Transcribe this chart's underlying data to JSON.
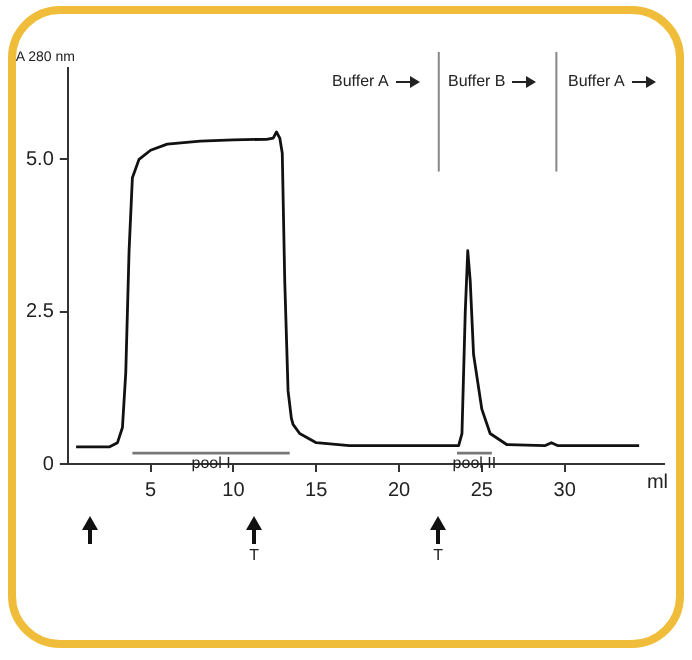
{
  "chart_data": {
    "type": "line",
    "ylabel": "A 280 nm",
    "xlabel": "ml",
    "xlim": [
      0,
      36
    ],
    "xticks": [
      5,
      10,
      15,
      20,
      25,
      30
    ],
    "ylim": [
      0,
      6.5
    ],
    "yticks": [
      0,
      2.5,
      {
        "value": 5,
        "label": "5.0"
      }
    ],
    "grid": false,
    "legend": false,
    "marker": "none",
    "line_style": "solid",
    "series": [
      {
        "color": "#111111",
        "x": [
          0.5,
          2.5,
          3.0,
          3.3,
          3.5,
          3.7,
          3.9,
          4.3,
          5,
          6,
          8,
          10,
          12,
          12.4,
          12.6,
          12.8,
          12.95,
          13.1,
          13.3,
          13.5,
          13.6,
          14,
          15,
          17,
          23.6,
          23.8,
          24.0,
          24.15,
          24.3,
          24.5,
          25,
          25.5,
          26.5,
          28.8,
          29.2,
          29.6,
          34.5
        ],
        "values": [
          0.28,
          0.28,
          0.35,
          0.6,
          1.5,
          3.5,
          4.7,
          5.0,
          5.15,
          5.25,
          5.3,
          5.32,
          5.33,
          5.35,
          5.45,
          5.35,
          5.1,
          3,
          1.2,
          0.75,
          0.65,
          0.5,
          0.35,
          0.3,
          0.3,
          0.5,
          2.5,
          3.5,
          3.0,
          1.8,
          0.9,
          0.5,
          0.32,
          0.3,
          0.35,
          0.3,
          0.3
        ]
      },
      {
        "name": "pool I",
        "color": "#777777",
        "x": [
          3.9,
          13.4
        ],
        "values": [
          0.18,
          0.18
        ]
      },
      {
        "name": "pool II",
        "color": "#777777",
        "x": [
          23.5,
          25.6
        ],
        "values": [
          0.18,
          0.18
        ]
      }
    ],
    "ref_lines": [
      {
        "axis": "x",
        "value": 22.4,
        "color": "#888888"
      },
      {
        "axis": "x",
        "value": 29.5,
        "color": "#888888"
      }
    ],
    "annotations": [
      "Buffer A",
      "Buffer B",
      "Buffer A",
      "T",
      "T"
    ]
  }
}
